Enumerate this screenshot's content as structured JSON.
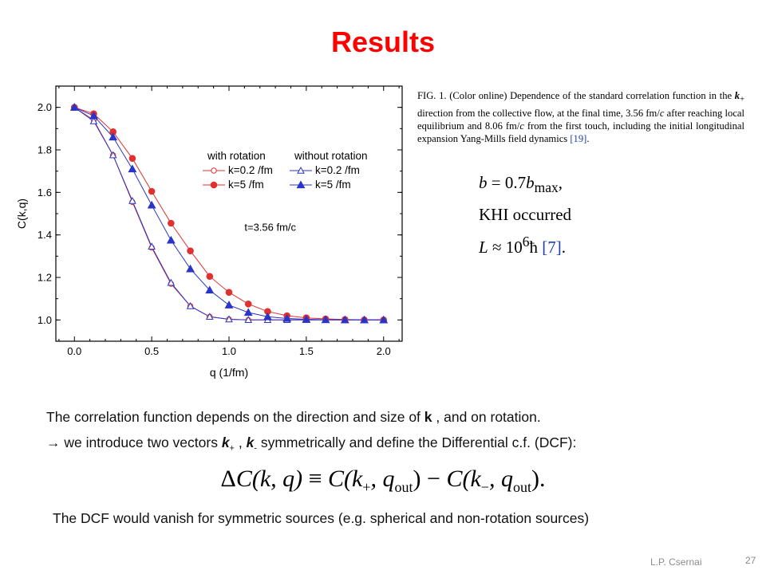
{
  "slide": {
    "title": "Results",
    "author": "L.P. Csernai",
    "page_number": "27"
  },
  "caption": {
    "label": "FIG. 1.",
    "text_parts": [
      " (Color online) Dependence of the standard correlation function in the ",
      "k",
      "+",
      " direction from the collective flow, at the final time, 3.56 fm/",
      "c",
      " after reaching local equilibrium and 8.06 fm/",
      "c",
      " from the first touch, including the initial longitudinal expansion Yang-Mills field dynamics ",
      "[19]",
      "."
    ]
  },
  "params": {
    "line1_lhs": "b",
    "line1_rhs": " = 0.7",
    "line1_b": "b",
    "line1_sub": "max",
    "line1_end": ",",
    "line2": "KHI  occurred",
    "line3_lhs": "L",
    "line3_rhs": " ≈ 10",
    "line3_exp": "6",
    "line3_hbar": "ħ",
    "line3_ref": "[7]",
    "line3_end": "."
  },
  "body": {
    "line1_a": "The correlation function depends on the direction and size of  ",
    "line1_k": "k",
    "line1_b": " ,  and on rotation.",
    "line2_arrow": "→",
    "line2_a": "  we introduce two  vectors  ",
    "line2_kplus": "k",
    "line2_plus": "+",
    "line2_mid": " ,  ",
    "line2_kminus": "k",
    "line2_minus": "-",
    "line2_b": " symmetrically and  define the Differential c.f. (DCF):",
    "line3": "The DCF would vanish for symmetric sources (e.g. spherical and non-rotation sources)"
  },
  "equation": {
    "delta": "Δ",
    "lhs": "C(k, q)",
    "equiv": "≡",
    "term1": "C(k",
    "sub1": "+",
    "q1": ", q",
    "out1": "out",
    "close1": ")",
    "minus": "−",
    "term2": "C(k",
    "sub2": "−",
    "q2": ", q",
    "out2": "out",
    "close2": ")."
  },
  "chart_data": {
    "type": "line",
    "xlabel": "q (1/fm)",
    "ylabel": "C(k,q)",
    "xlim": [
      -0.12,
      2.12
    ],
    "ylim": [
      0.9,
      2.1
    ],
    "xticks": [
      "0.0",
      "0.5",
      "1.0",
      "1.5",
      "2.0"
    ],
    "yticks": [
      "1.0",
      "1.2",
      "1.4",
      "1.6",
      "1.8",
      "2.0"
    ],
    "annotation": "t=3.56 fm/c",
    "legend_headers": [
      "with rotation",
      "without rotation"
    ],
    "legend_placement": "center-right",
    "x": [
      0.0,
      0.125,
      0.25,
      0.375,
      0.5,
      0.625,
      0.75,
      0.875,
      1.0,
      1.125,
      1.25,
      1.375,
      1.5,
      1.625,
      1.75,
      1.875,
      2.0
    ],
    "series": [
      {
        "name": "k=0.2 /fm",
        "group": "with rotation",
        "marker": "circle-open",
        "color": "#e0302f",
        "values": [
          2.0,
          1.94,
          1.775,
          1.555,
          1.34,
          1.17,
          1.065,
          1.015,
          1.003,
          1.0,
          1.0,
          1.0,
          1.0,
          1.0,
          1.0,
          1.0,
          1.0
        ]
      },
      {
        "name": "k=5 /fm",
        "group": "with rotation",
        "marker": "circle-filled",
        "color": "#e0302f",
        "values": [
          2.0,
          1.97,
          1.885,
          1.76,
          1.605,
          1.455,
          1.325,
          1.205,
          1.13,
          1.075,
          1.04,
          1.02,
          1.01,
          1.005,
          1.002,
          1.0,
          1.0
        ]
      },
      {
        "name": "k=0.2 /fm",
        "group": "without rotation",
        "marker": "triangle-open",
        "color": "#2a35c8",
        "values": [
          2.0,
          1.935,
          1.775,
          1.56,
          1.345,
          1.175,
          1.065,
          1.015,
          1.003,
          1.0,
          1.0,
          1.0,
          1.0,
          1.0,
          1.0,
          1.0,
          1.0
        ]
      },
      {
        "name": "k=5 /fm",
        "group": "without rotation",
        "marker": "triangle-filled",
        "color": "#2a35c8",
        "values": [
          2.0,
          1.96,
          1.86,
          1.71,
          1.54,
          1.375,
          1.24,
          1.14,
          1.07,
          1.035,
          1.015,
          1.007,
          1.003,
          1.001,
          1.0,
          1.0,
          1.0
        ]
      }
    ]
  }
}
